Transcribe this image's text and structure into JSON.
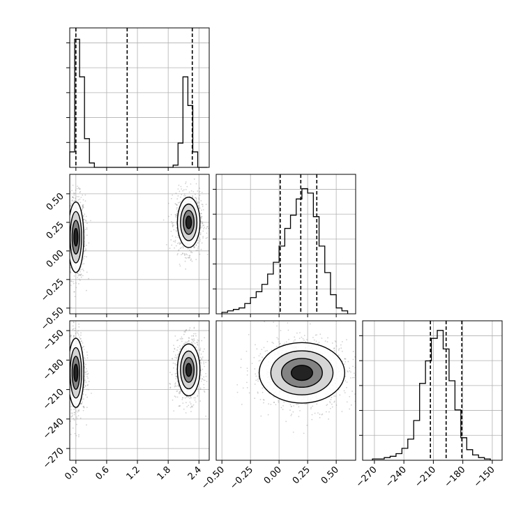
{
  "chart_data": [
    {
      "type": "histogram",
      "panel": "param0-marginal",
      "xlim": [
        -0.12,
        2.6
      ],
      "bins_x": [
        -0.12,
        -0.024,
        0.072,
        0.168,
        0.264,
        0.36,
        0.456,
        0.552,
        0.648,
        0.744,
        0.84,
        0.936,
        1.032,
        1.128,
        1.224,
        1.32,
        1.416,
        1.512,
        1.608,
        1.704,
        1.8,
        1.896,
        1.992,
        2.088,
        2.184,
        2.28,
        2.376,
        2.472,
        2.568
      ],
      "counts": [
        7,
        58,
        41,
        13,
        2,
        0,
        0,
        0,
        0,
        0,
        0,
        0,
        0,
        0,
        0,
        0,
        0,
        0,
        0,
        0,
        0,
        1,
        11,
        41,
        28,
        7,
        0,
        0
      ],
      "ymax": 60,
      "quantile_lines": [
        0.0,
        1.0,
        2.27
      ],
      "xticks": [
        "0.0",
        "0.6",
        "1.2",
        "1.8",
        "2.4"
      ],
      "xtick_values": [
        0.0,
        0.6,
        1.2,
        1.8,
        2.4
      ]
    },
    {
      "type": "histogram",
      "panel": "param1-marginal",
      "xlim": [
        -0.55,
        0.67
      ],
      "bins_x": [
        -0.5,
        -0.45,
        -0.4,
        -0.35,
        -0.3,
        -0.25,
        -0.2,
        -0.15,
        -0.1,
        -0.05,
        0.0,
        0.05,
        0.1,
        0.15,
        0.2,
        0.25,
        0.3,
        0.35,
        0.4,
        0.45,
        0.5,
        0.55,
        0.6
      ],
      "counts": [
        1,
        2,
        3,
        4,
        7,
        11,
        15,
        20,
        27,
        35,
        46,
        58,
        67,
        78,
        85,
        82,
        66,
        46,
        28,
        13,
        4,
        2
      ],
      "ymax": 90,
      "quantile_lines": [
        0.01,
        0.19,
        0.33
      ],
      "xticks": [
        "-0.50",
        "-0.25",
        "0.00",
        "0.25",
        "0.50"
      ],
      "xtick_values": [
        -0.5,
        -0.25,
        0.0,
        0.25,
        0.5
      ]
    },
    {
      "type": "histogram",
      "panel": "param2-marginal",
      "xlim": [
        -282,
        -140
      ],
      "bins_x": [
        -272,
        -266,
        -260,
        -254,
        -248,
        -242,
        -236,
        -230,
        -224,
        -218,
        -212,
        -206,
        -200,
        -194,
        -188,
        -182,
        -176,
        -170,
        -164,
        -158,
        -152
      ],
      "counts": [
        1,
        1,
        2,
        3,
        5,
        9,
        16,
        30,
        58,
        75,
        92,
        98,
        84,
        60,
        38,
        17,
        8,
        4,
        2,
        1
      ],
      "ymax": 100,
      "quantile_lines": [
        -213,
        -197,
        -181
      ],
      "xticks": [
        "-270",
        "-240",
        "-210",
        "-180",
        "-150"
      ],
      "xtick_values": [
        -270,
        -240,
        -210,
        -180,
        -150
      ]
    },
    {
      "type": "heatmap",
      "panel": "param0-vs-param1",
      "xlim": [
        -0.12,
        2.6
      ],
      "ylim": [
        -0.55,
        0.67
      ],
      "clusters": [
        {
          "x": 0.0,
          "y": 0.12,
          "sx": 0.07,
          "sy": 0.14
        },
        {
          "x": 2.2,
          "y": 0.25,
          "sx": 0.1,
          "sy": 0.1
        }
      ],
      "yticks": [
        "-0.50",
        "-0.25",
        "0.00",
        "0.25",
        "0.50"
      ],
      "ytick_values": [
        -0.5,
        -0.25,
        0.0,
        0.25,
        0.5
      ]
    },
    {
      "type": "heatmap",
      "panel": "param0-vs-param2",
      "xlim": [
        -0.12,
        2.6
      ],
      "ylim": [
        -282,
        -140
      ],
      "clusters": [
        {
          "x": 0.0,
          "y": -193,
          "sx": 0.07,
          "sy": 16
        },
        {
          "x": 2.2,
          "y": -190,
          "sx": 0.1,
          "sy": 12
        }
      ],
      "yticks": [
        "-270",
        "-240",
        "-210",
        "-180",
        "-150"
      ],
      "ytick_values": [
        -270,
        -240,
        -210,
        -180,
        -150
      ]
    },
    {
      "type": "heatmap",
      "panel": "param1-vs-param2",
      "xlim": [
        -0.55,
        0.67
      ],
      "ylim": [
        -282,
        -140
      ],
      "clusters": [
        {
          "x": 0.2,
          "y": -193,
          "sx": 0.17,
          "sy": 14
        }
      ]
    }
  ],
  "styles": {
    "line_color": "#000000",
    "grid_color": "#b0b0b0",
    "dot_color": "#7a7a7a"
  }
}
